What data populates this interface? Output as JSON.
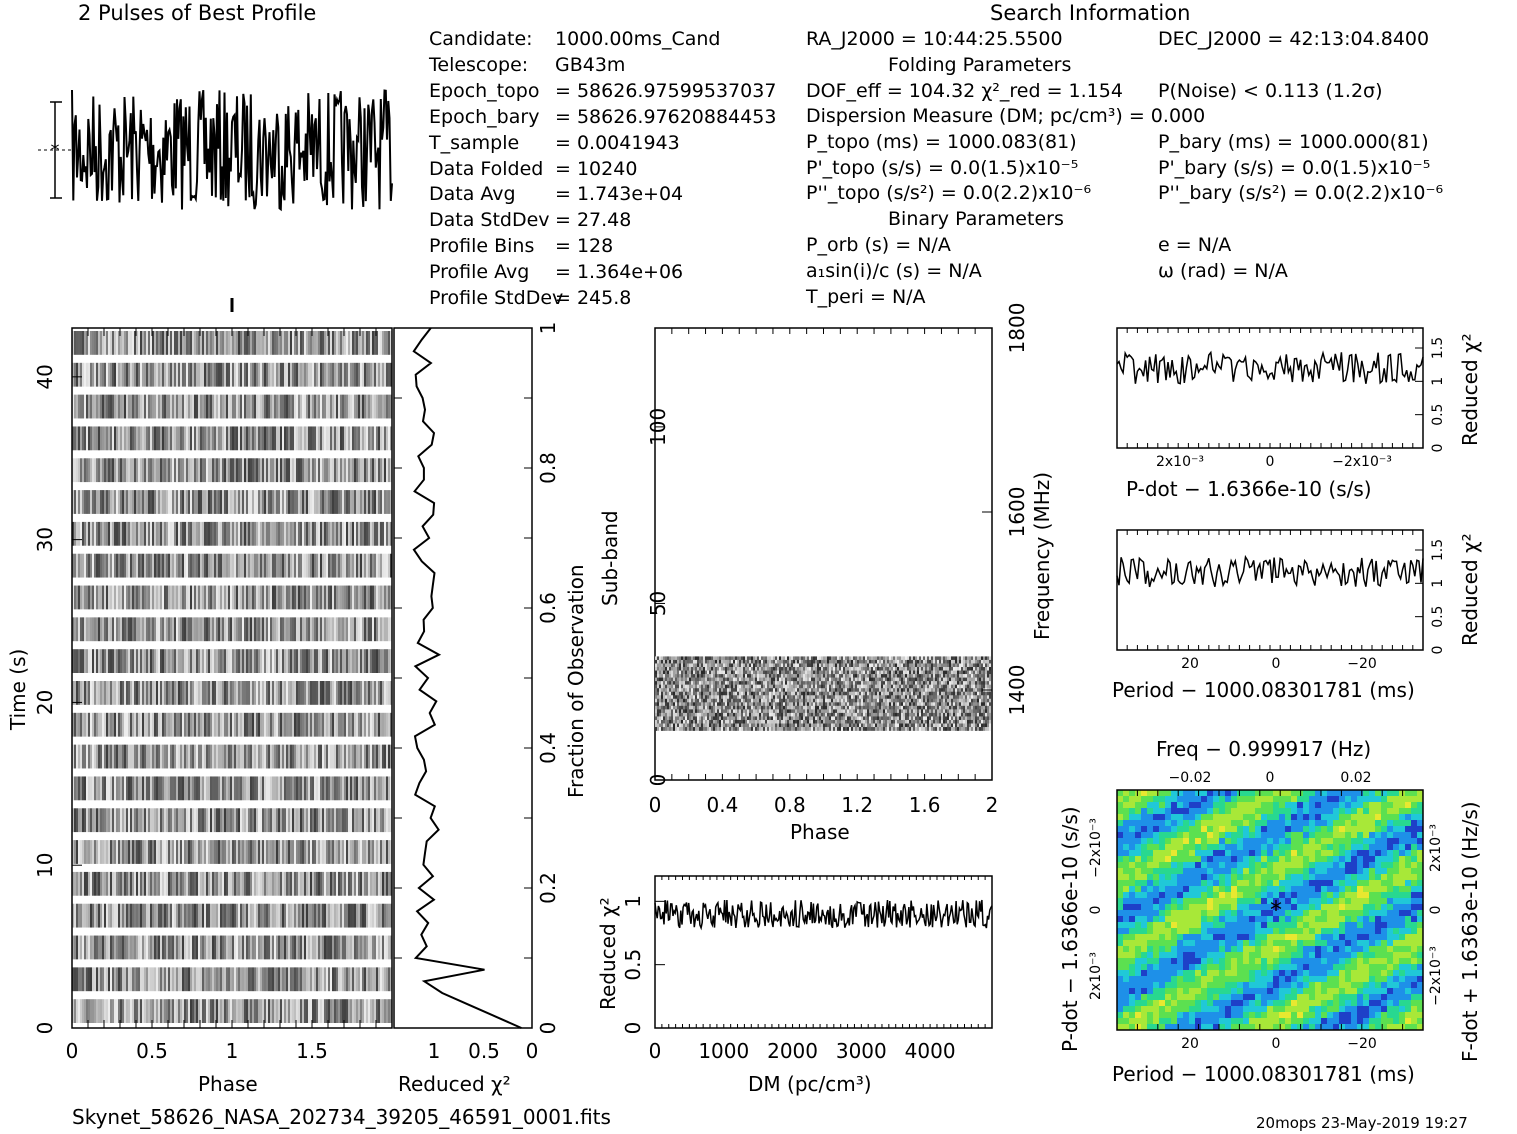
{
  "header": {
    "profile_title": "2 Pulses of Best Profile",
    "search_title": "Search Information",
    "folding_title": "Folding Parameters",
    "binary_title": "Binary Parameters"
  },
  "info_left": [
    {
      "label": "Candidate:",
      "value": "1000.00ms_Cand"
    },
    {
      "label": "Telescope:",
      "value": "GB43m"
    },
    {
      "label": "Epoch_topo",
      "value": "= 58626.97599537037"
    },
    {
      "label": "Epoch_bary",
      "value": "= 58626.97620884453"
    },
    {
      "label": "T_sample",
      "value": "=   0.0041943"
    },
    {
      "label": "Data Folded",
      "value": "=   10240"
    },
    {
      "label": "Data Avg",
      "value": "=   1.743e+04"
    },
    {
      "label": "Data StdDev",
      "value": "=   27.48"
    },
    {
      "label": "Profile Bins",
      "value": "=   128"
    },
    {
      "label": "Profile Avg",
      "value": "=   1.364e+06"
    },
    {
      "label": "Profile StdDev",
      "value": "=   245.8"
    }
  ],
  "info_mid": [
    "RA_J2000 = 10:44:25.5500",
    "DOF_eff = 104.32  χ²_red = 1.154",
    "Dispersion Measure (DM; pc/cm³) = 0.000",
    "P_topo (ms) =  1000.083(81)",
    "P'_topo (s/s) = 0.0(1.5)x10⁻⁵",
    "P''_topo (s/s²) = 0.0(2.2)x10⁻⁶",
    "P_orb (s) = N/A",
    "a₁sin(i)/c (s) = N/A",
    "T_peri = N/A"
  ],
  "info_right": [
    "DEC_J2000 = 42:13:04.8400",
    "P(Noise) < 0.113   (1.2σ)",
    "P_bary (ms) =  1000.000(81)",
    "P'_bary (s/s) = 0.0(1.5)x10⁻⁵",
    "P''_bary (s/s²) = 0.0(2.2)x10⁻⁶",
    "e = N/A",
    "ω (rad) = N/A"
  ],
  "footer": {
    "filename": "Skynet_58626_NASA_202734_39205_46591_0001.fits",
    "stamp": "20mops 23-May-2019 19:27"
  },
  "colors": {
    "ink": "#000000",
    "cmap": [
      "#1a237e",
      "#1e40c8",
      "#1e90e8",
      "#20c8d8",
      "#28d890",
      "#5ce050",
      "#a8e838",
      "#e8e830"
    ]
  },
  "chart_data": [
    {
      "type": "line",
      "name_key": "profile",
      "title": "2 Pulses of Best Profile",
      "x_range": [
        0,
        2
      ],
      "note": "two pulse periods of folded profile, noise-dominated"
    },
    {
      "type": "heatmap",
      "name_key": "time_phase",
      "xlabel": "Phase",
      "ylabel": "Time (s)",
      "x_ticks": [
        "0",
        "0.5",
        "1",
        "1.5"
      ],
      "y_ticks": [
        "0",
        "10",
        "20",
        "30",
        "40"
      ],
      "xlim": [
        0,
        2
      ],
      "ylim": [
        0,
        43
      ]
    },
    {
      "type": "line",
      "name_key": "chi_vs_time",
      "xlabel": "Reduced χ²",
      "ylabel": "Fraction of Observation",
      "x_ticks": [
        "1",
        "0.5",
        "0"
      ],
      "y_ticks": [
        "0",
        "0.2",
        "0.4",
        "0.6",
        "0.8",
        "1"
      ]
    },
    {
      "type": "heatmap",
      "name_key": "subband_phase",
      "xlabel": "Phase",
      "ylabel": "Sub-band",
      "y2label": "Frequency (MHz)",
      "x_ticks": [
        "0",
        "0.4",
        "0.8",
        "1.2",
        "1.6",
        "2"
      ],
      "y_ticks": [
        "0",
        "50",
        "100"
      ],
      "y2_ticks": [
        "1400",
        "1600",
        "1800"
      ],
      "filled_subbands": [
        14,
        35
      ]
    },
    {
      "type": "line",
      "name_key": "chi_vs_dm",
      "xlabel": "DM (pc/cm³)",
      "ylabel": "Reduced χ²",
      "x_ticks": [
        "0",
        "1000",
        "2000",
        "3000",
        "4000"
      ],
      "y_ticks": [
        "0",
        "0.5",
        "1"
      ],
      "xlim": [
        0,
        4900
      ],
      "ylim": [
        0,
        1.2
      ]
    },
    {
      "type": "line",
      "name_key": "chi_vs_pdot",
      "xlabel": "P-dot − 1.6366e-10 (s/s)",
      "ylabel": "Reduced χ²",
      "x_ticks": [
        "2x10⁻³",
        "0",
        "−2x10⁻³"
      ],
      "y_ticks": [
        "0",
        "0.5",
        "1",
        "1.5"
      ]
    },
    {
      "type": "line",
      "name_key": "chi_vs_period",
      "xlabel": "Period − 1000.08301781 (ms)",
      "ylabel": "Reduced χ²",
      "x_ticks": [
        "20",
        "0",
        "−20"
      ],
      "y_ticks": [
        "0",
        "0.5",
        "1",
        "1.5"
      ]
    },
    {
      "type": "heatmap",
      "name_key": "ppdot",
      "title": "Freq − 0.999917 (Hz)",
      "xlabel": "Period − 1000.08301781 (ms)",
      "ylabel": "P-dot − 1.6366e-10 (s/s)",
      "y2label": "F-dot + 1.6363e-10 (Hz/s)",
      "x_ticks": [
        "20",
        "0",
        "−20"
      ],
      "x2_ticks": [
        "−0.02",
        "0",
        "0.02"
      ],
      "y_ticks": [
        "−2x10⁻³",
        "0",
        "2x10⁻³"
      ],
      "y2_ticks": [
        "2x10⁻³",
        "0",
        "−2x10⁻³"
      ]
    }
  ]
}
